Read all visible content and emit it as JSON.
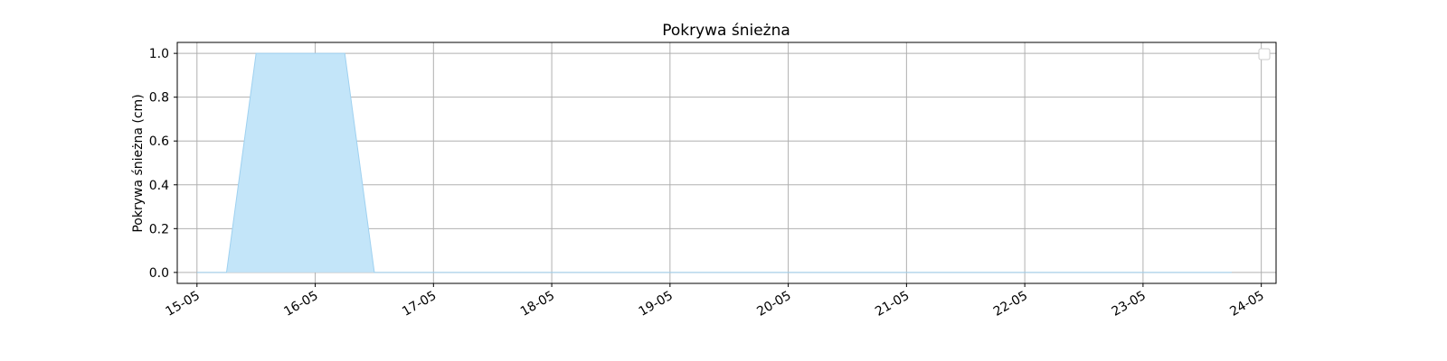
{
  "chart_data": {
    "type": "area",
    "title": "Pokrywa śnieżna",
    "xlabel": "",
    "ylabel": "Pokrywa śnieżna (cm)",
    "x_ticks": [
      "15-05",
      "16-05",
      "17-05",
      "18-05",
      "19-05",
      "20-05",
      "21-05",
      "22-05",
      "23-05",
      "24-05"
    ],
    "y_ticks": [
      "0.0",
      "0.2",
      "0.4",
      "0.6",
      "0.8",
      "1.0"
    ],
    "ylim": [
      -0.05,
      1.05
    ],
    "xlim": [
      "2024-05-14T20:00",
      "2024-05-24T03:00"
    ],
    "grid": true,
    "legend": "top-right",
    "fill_color": "#c3e5f9",
    "line_color": "#9fd1f0",
    "series": [
      {
        "x": [
          "2024-05-15T00:00",
          "2024-05-15T06:00",
          "2024-05-15T12:00",
          "2024-05-15T18:00",
          "2024-05-16T00:00",
          "2024-05-16T06:00",
          "2024-05-16T12:00",
          "2024-05-16T18:00",
          "2024-05-17T00:00",
          "2024-05-18T00:00",
          "2024-05-19T00:00",
          "2024-05-20T00:00",
          "2024-05-21T00:00",
          "2024-05-22T00:00",
          "2024-05-23T00:00",
          "2024-05-23T18:00"
        ],
        "values": [
          0,
          0,
          1,
          1,
          1,
          1,
          0,
          0,
          0,
          0,
          0,
          0,
          0,
          0,
          0,
          0
        ]
      }
    ]
  }
}
